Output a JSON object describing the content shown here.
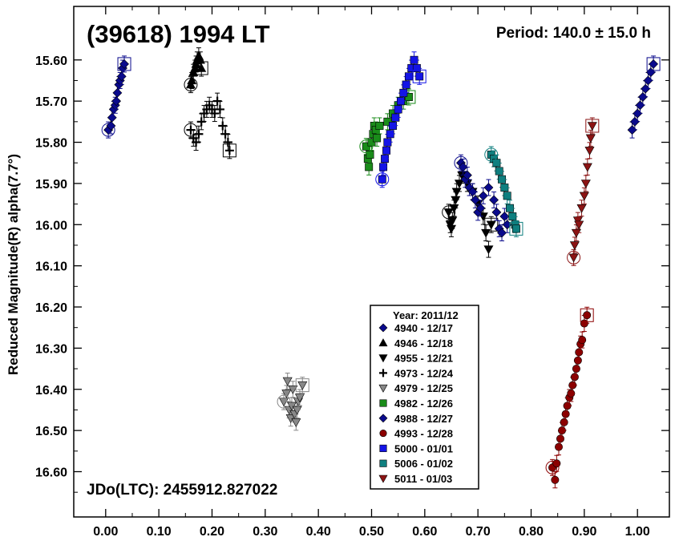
{
  "chart_data": {
    "type": "scatter",
    "title": "(39618) 1994 LT",
    "period_text": "Period: 140.0 ± 15.0 h",
    "epoch_text": "JDo(LTC): 2455912.827022",
    "ylabel": "Reduced Magnitude(R) alpha(7.7°)",
    "xlabel": "",
    "xlim": [
      -0.06,
      1.06
    ],
    "ylim": [
      16.71,
      15.47
    ],
    "y_inverted": true,
    "grid": false,
    "x_ticks": [
      "0.00",
      "0.10",
      "0.20",
      "0.30",
      "0.40",
      "0.50",
      "0.60",
      "0.70",
      "0.80",
      "0.90",
      "1.00"
    ],
    "y_ticks": [
      "15.60",
      "15.70",
      "15.80",
      "15.90",
      "16.00",
      "16.10",
      "16.20",
      "16.30",
      "16.40",
      "16.50",
      "16.60"
    ],
    "legend_title": "Year: 2011/12",
    "legend_position": "bottom-center",
    "series": [
      {
        "name": "4940 - 12/17",
        "marker": "diamond",
        "color": "#0a0a8c",
        "points": [
          [
            0.005,
            15.77
          ],
          [
            0.01,
            15.76
          ],
          [
            0.012,
            15.74
          ],
          [
            0.015,
            15.72
          ],
          [
            0.018,
            15.71
          ],
          [
            0.02,
            15.7
          ],
          [
            0.022,
            15.68
          ],
          [
            0.025,
            15.66
          ],
          [
            0.027,
            15.65
          ],
          [
            0.03,
            15.64
          ],
          [
            0.032,
            15.62
          ],
          [
            0.035,
            15.61
          ]
        ]
      },
      {
        "name": "4946 - 12/18",
        "marker": "triangle-up",
        "color": "#000000",
        "points": [
          [
            0.16,
            15.66
          ],
          [
            0.162,
            15.65
          ],
          [
            0.165,
            15.63
          ],
          [
            0.168,
            15.62
          ],
          [
            0.17,
            15.61
          ],
          [
            0.172,
            15.6
          ],
          [
            0.175,
            15.59
          ],
          [
            0.178,
            15.6
          ],
          [
            0.18,
            15.62
          ]
        ]
      },
      {
        "name": "4955 - 12/21",
        "marker": "triangle-down",
        "color": "#000000",
        "points": [
          [
            0.645,
            15.97
          ],
          [
            0.648,
            16.0
          ],
          [
            0.65,
            16.01
          ],
          [
            0.652,
            15.99
          ],
          [
            0.655,
            15.96
          ],
          [
            0.658,
            15.94
          ],
          [
            0.66,
            15.92
          ],
          [
            0.665,
            15.9
          ],
          [
            0.67,
            15.88
          ],
          [
            0.68,
            15.9
          ],
          [
            0.69,
            15.92
          ],
          [
            0.7,
            15.95
          ],
          [
            0.71,
            15.98
          ],
          [
            0.715,
            16.02
          ],
          [
            0.72,
            16.06
          ],
          [
            0.725,
            16.0
          ]
        ]
      },
      {
        "name": "4973 - 12/24",
        "marker": "plus",
        "color": "#000000",
        "points": [
          [
            0.16,
            15.77
          ],
          [
            0.165,
            15.79
          ],
          [
            0.17,
            15.8
          ],
          [
            0.175,
            15.78
          ],
          [
            0.18,
            15.75
          ],
          [
            0.185,
            15.73
          ],
          [
            0.19,
            15.72
          ],
          [
            0.195,
            15.71
          ],
          [
            0.2,
            15.72
          ],
          [
            0.205,
            15.73
          ],
          [
            0.21,
            15.7
          ],
          [
            0.215,
            15.72
          ],
          [
            0.22,
            15.76
          ],
          [
            0.225,
            15.78
          ],
          [
            0.23,
            15.8
          ],
          [
            0.233,
            15.82
          ]
        ]
      },
      {
        "name": "4979 - 12/25",
        "marker": "triangle-down",
        "color": "#888888",
        "points": [
          [
            0.335,
            16.43
          ],
          [
            0.34,
            16.41
          ],
          [
            0.342,
            16.38
          ],
          [
            0.345,
            16.45
          ],
          [
            0.348,
            16.47
          ],
          [
            0.35,
            16.44
          ],
          [
            0.352,
            16.4
          ],
          [
            0.355,
            16.46
          ],
          [
            0.358,
            16.48
          ],
          [
            0.36,
            16.45
          ],
          [
            0.362,
            16.43
          ],
          [
            0.365,
            16.42
          ],
          [
            0.37,
            16.39
          ]
        ]
      },
      {
        "name": "4982 - 12/26",
        "marker": "square",
        "color": "#1a8c1a",
        "points": [
          [
            0.49,
            15.81
          ],
          [
            0.493,
            15.84
          ],
          [
            0.495,
            15.86
          ],
          [
            0.497,
            15.83
          ],
          [
            0.5,
            15.8
          ],
          [
            0.503,
            15.78
          ],
          [
            0.505,
            15.76
          ],
          [
            0.508,
            15.77
          ],
          [
            0.51,
            15.79
          ],
          [
            0.515,
            15.76
          ],
          [
            0.53,
            15.75
          ],
          [
            0.54,
            15.73
          ],
          [
            0.55,
            15.71
          ],
          [
            0.56,
            15.7
          ],
          [
            0.57,
            15.69
          ]
        ]
      },
      {
        "name": "4988 - 12/27",
        "marker": "diamond",
        "color": "#0a0a8c",
        "points": [
          [
            0.668,
            15.85
          ],
          [
            0.672,
            15.86
          ],
          [
            0.676,
            15.89
          ],
          [
            0.68,
            15.88
          ],
          [
            0.684,
            15.91
          ],
          [
            0.69,
            15.92
          ],
          [
            0.695,
            15.94
          ],
          [
            0.7,
            15.97
          ],
          [
            0.705,
            15.96
          ],
          [
            0.71,
            15.93
          ],
          [
            0.72,
            15.91
          ],
          [
            0.73,
            15.94
          ],
          [
            0.735,
            15.97
          ],
          [
            0.74,
            16.01
          ],
          [
            0.745,
            16.02
          ],
          [
            0.75,
            15.98
          ],
          [
            0.755,
            16.0
          ],
          [
            0.99,
            15.77
          ],
          [
            0.995,
            15.75
          ],
          [
            1.0,
            15.73
          ],
          [
            1.005,
            15.71
          ],
          [
            1.01,
            15.69
          ],
          [
            1.015,
            15.67
          ],
          [
            1.02,
            15.65
          ],
          [
            1.025,
            15.63
          ],
          [
            1.03,
            15.61
          ]
        ]
      },
      {
        "name": "4993 - 12/28",
        "marker": "circle",
        "color": "#8c0000",
        "points": [
          [
            0.84,
            16.59
          ],
          [
            0.845,
            16.62
          ],
          [
            0.848,
            16.58
          ],
          [
            0.852,
            16.54
          ],
          [
            0.855,
            16.52
          ],
          [
            0.858,
            16.5
          ],
          [
            0.862,
            16.48
          ],
          [
            0.865,
            16.46
          ],
          [
            0.868,
            16.44
          ],
          [
            0.872,
            16.42
          ],
          [
            0.875,
            16.41
          ],
          [
            0.878,
            16.39
          ],
          [
            0.882,
            16.37
          ],
          [
            0.885,
            16.35
          ],
          [
            0.888,
            16.33
          ],
          [
            0.89,
            16.31
          ],
          [
            0.893,
            16.29
          ],
          [
            0.896,
            16.28
          ],
          [
            0.9,
            16.24
          ],
          [
            0.905,
            16.22
          ]
        ]
      },
      {
        "name": "5000 - 01/01",
        "marker": "square",
        "color": "#1414e6",
        "points": [
          [
            0.52,
            15.89
          ],
          [
            0.522,
            15.86
          ],
          [
            0.525,
            15.84
          ],
          [
            0.528,
            15.82
          ],
          [
            0.53,
            15.8
          ],
          [
            0.535,
            15.78
          ],
          [
            0.54,
            15.76
          ],
          [
            0.545,
            15.74
          ],
          [
            0.55,
            15.72
          ],
          [
            0.555,
            15.7
          ],
          [
            0.56,
            15.68
          ],
          [
            0.565,
            15.66
          ],
          [
            0.57,
            15.64
          ],
          [
            0.575,
            15.62
          ],
          [
            0.58,
            15.6
          ],
          [
            0.585,
            15.62
          ],
          [
            0.59,
            15.64
          ]
        ]
      },
      {
        "name": "5006 - 01/02",
        "marker": "square",
        "color": "#0f7f7f",
        "points": [
          [
            0.725,
            15.83
          ],
          [
            0.73,
            15.84
          ],
          [
            0.735,
            15.85
          ],
          [
            0.74,
            15.87
          ],
          [
            0.745,
            15.89
          ],
          [
            0.75,
            15.91
          ],
          [
            0.755,
            15.93
          ],
          [
            0.76,
            15.96
          ],
          [
            0.765,
            15.98
          ],
          [
            0.77,
            16.0
          ],
          [
            0.772,
            16.01
          ]
        ]
      },
      {
        "name": "5011 - 01/03",
        "marker": "triangle-down",
        "color": "#8c1414",
        "points": [
          [
            0.88,
            16.08
          ],
          [
            0.882,
            16.05
          ],
          [
            0.885,
            16.02
          ],
          [
            0.888,
            15.99
          ],
          [
            0.89,
            16.0
          ],
          [
            0.895,
            15.96
          ],
          [
            0.9,
            15.93
          ],
          [
            0.903,
            15.9
          ],
          [
            0.906,
            15.86
          ],
          [
            0.91,
            15.82
          ],
          [
            0.912,
            15.79
          ],
          [
            0.915,
            15.76
          ]
        ]
      }
    ]
  }
}
